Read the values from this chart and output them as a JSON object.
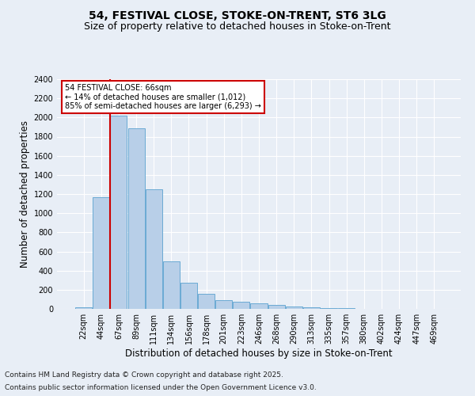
{
  "title1": "54, FESTIVAL CLOSE, STOKE-ON-TRENT, ST6 3LG",
  "title2": "Size of property relative to detached houses in Stoke-on-Trent",
  "xlabel": "Distribution of detached houses by size in Stoke-on-Trent",
  "ylabel": "Number of detached properties",
  "categories": [
    "22sqm",
    "44sqm",
    "67sqm",
    "89sqm",
    "111sqm",
    "134sqm",
    "156sqm",
    "178sqm",
    "201sqm",
    "223sqm",
    "246sqm",
    "268sqm",
    "290sqm",
    "313sqm",
    "335sqm",
    "357sqm",
    "380sqm",
    "402sqm",
    "424sqm",
    "447sqm",
    "469sqm"
  ],
  "values": [
    15,
    1170,
    2020,
    1890,
    1250,
    500,
    270,
    155,
    95,
    75,
    60,
    45,
    25,
    15,
    8,
    6,
    4,
    3,
    2,
    2,
    2
  ],
  "bar_color": "#b8cfe8",
  "bar_edge_color": "#6aaad4",
  "vline_color": "#cc0000",
  "ylim": [
    0,
    2400
  ],
  "annotation_text": "54 FESTIVAL CLOSE: 66sqm\n← 14% of detached houses are smaller (1,012)\n85% of semi-detached houses are larger (6,293) →",
  "annotation_box_color": "#ffffff",
  "annotation_box_edge": "#cc0000",
  "footnote1": "Contains HM Land Registry data © Crown copyright and database right 2025.",
  "footnote2": "Contains public sector information licensed under the Open Government Licence v3.0.",
  "bg_color": "#e8eef6",
  "plot_bg_color": "#e8eef6",
  "title_fontsize": 10,
  "subtitle_fontsize": 9,
  "axis_label_fontsize": 8.5,
  "tick_fontsize": 7,
  "footnote_fontsize": 6.5
}
